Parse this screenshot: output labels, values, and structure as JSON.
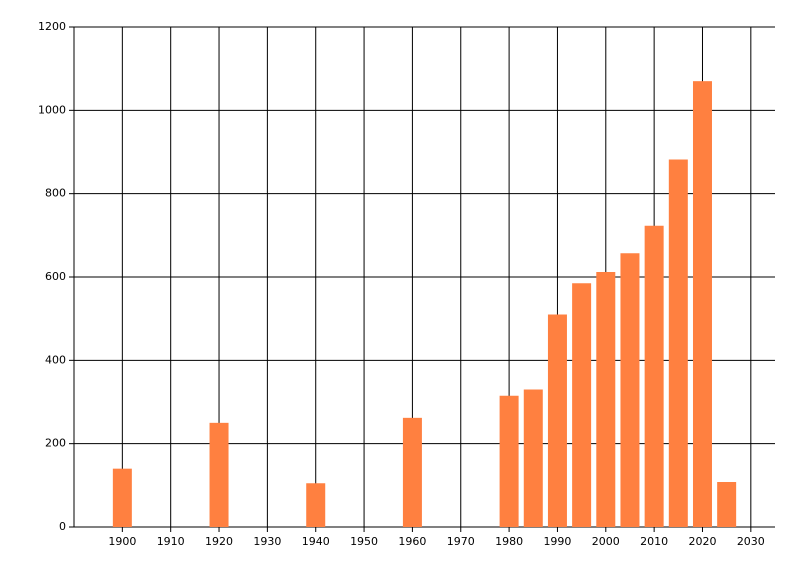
{
  "chart_data": {
    "type": "bar",
    "x": [
      1900,
      1920,
      1940,
      1960,
      1980,
      1985,
      1990,
      1995,
      2000,
      2005,
      2010,
      2015,
      2020,
      2025
    ],
    "values": [
      140,
      250,
      105,
      262,
      315,
      330,
      510,
      585,
      612,
      657,
      723,
      882,
      1070,
      108
    ],
    "color": "#ff8040",
    "xlim": [
      1890,
      2035
    ],
    "xticks": [
      1900,
      1910,
      1920,
      1930,
      1940,
      1950,
      1960,
      1970,
      1980,
      1990,
      2000,
      2010,
      2020,
      2030
    ],
    "ylim": [
      0,
      1200
    ],
    "yticks": [
      0,
      200,
      400,
      600,
      800,
      1000,
      1200
    ],
    "grid": true
  }
}
